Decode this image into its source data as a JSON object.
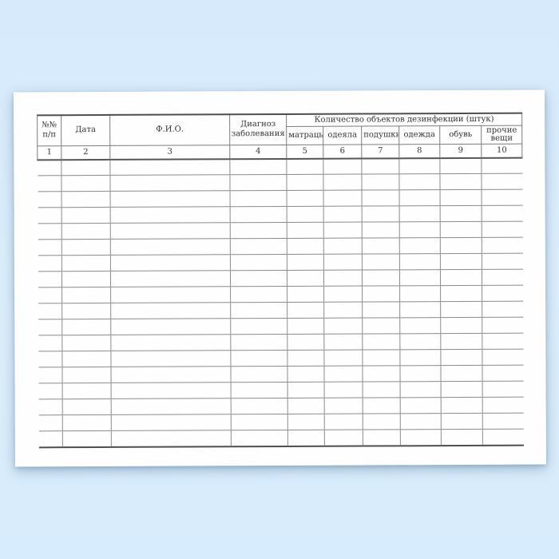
{
  "colors": {
    "background_top": "#d6eafc",
    "background_bottom": "#d7ecfc",
    "paper": "#fefefe",
    "grid_line": "#828282",
    "grid_line_heavy": "#4e4e4e",
    "text": "#333333"
  },
  "table": {
    "group_header": "Количество объектов дезинфекции (штук)",
    "columns_main": [
      {
        "label_line1": "№№",
        "label_line2": "п/п",
        "number": "1"
      },
      {
        "label": "Дата",
        "number": "2"
      },
      {
        "label": "Ф.И.О.",
        "number": "3"
      },
      {
        "label_line1": "Диагноз",
        "label_line2": "заболевания",
        "number": "4"
      }
    ],
    "columns_group": [
      {
        "label": "матрацы",
        "number": "5"
      },
      {
        "label": "одеяла",
        "number": "6"
      },
      {
        "label": "подушки",
        "number": "7"
      },
      {
        "label": "одежда",
        "number": "8"
      },
      {
        "label": "обувь",
        "number": "9"
      },
      {
        "label": "прочие вещи",
        "number": "10"
      }
    ],
    "column_numbers": [
      "1",
      "2",
      "3",
      "4",
      "5",
      "6",
      "7",
      "8",
      "9",
      "10"
    ],
    "empty_body_rows": 18,
    "columns_total": 10
  }
}
